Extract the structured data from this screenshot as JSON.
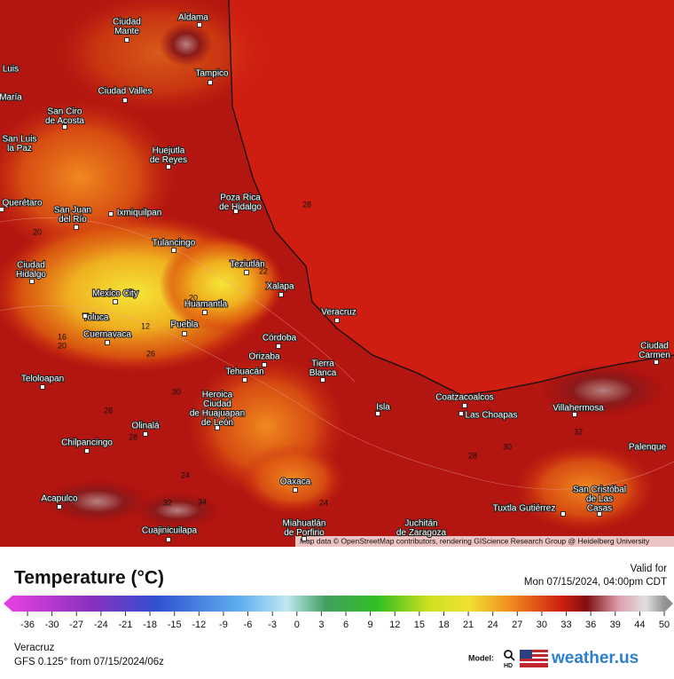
{
  "map": {
    "cities": [
      {
        "lines": [
          "Ciudad",
          "Mante"
        ]
      },
      {
        "lines": [
          "Aldama"
        ]
      },
      {
        "lines": [
          "Tampico"
        ]
      },
      {
        "lines": [
          "Luis"
        ]
      },
      {
        "lines": [
          "María"
        ]
      },
      {
        "lines": [
          "Ciudad Valles"
        ]
      },
      {
        "lines": [
          "San Ciro",
          "de Acosta"
        ]
      },
      {
        "lines": [
          "San Luis",
          "la Paz"
        ]
      },
      {
        "lines": [
          "Huejutla",
          "de Reyes"
        ]
      },
      {
        "lines": [
          "Poza Rica",
          "de Hidalgo"
        ]
      },
      {
        "lines": [
          "Querétaro"
        ]
      },
      {
        "lines": [
          "San Juan",
          "del Río"
        ]
      },
      {
        "lines": [
          "Ixmiquilpan"
        ]
      },
      {
        "lines": [
          "Tulancingo"
        ]
      },
      {
        "lines": [
          "Ciudad",
          "Hidalgo"
        ]
      },
      {
        "lines": [
          "Teziutlán"
        ]
      },
      {
        "lines": [
          "Xalapa"
        ]
      },
      {
        "lines": [
          "Mexico City"
        ]
      },
      {
        "lines": [
          "Huamantla"
        ]
      },
      {
        "lines": [
          "Veracruz"
        ]
      },
      {
        "lines": [
          "Toluca"
        ]
      },
      {
        "lines": [
          "Puebla"
        ]
      },
      {
        "lines": [
          "Cuernavaca"
        ]
      },
      {
        "lines": [
          "Córdoba"
        ]
      },
      {
        "lines": [
          "Orizaba"
        ]
      },
      {
        "lines": [
          "Tierra",
          "Blanca"
        ]
      },
      {
        "lines": [
          "Tehuacán"
        ]
      },
      {
        "lines": [
          "Teloloapan"
        ]
      },
      {
        "lines": [
          "Coatzacoalcos"
        ]
      },
      {
        "lines": [
          "Heroica",
          "Ciudad",
          "de Huajuapan",
          "de León"
        ]
      },
      {
        "lines": [
          "Isla"
        ]
      },
      {
        "lines": [
          "Villahermosa"
        ]
      },
      {
        "lines": [
          "Las Choapas"
        ]
      },
      {
        "lines": [
          "Olinalá"
        ]
      },
      {
        "lines": [
          "Chilpancingo"
        ]
      },
      {
        "lines": [
          "Palenque"
        ]
      },
      {
        "lines": [
          "Ciudad",
          "Carmen"
        ]
      },
      {
        "lines": [
          "Oaxaca"
        ]
      },
      {
        "lines": [
          "San Cristóbal",
          "de Las",
          "Casas"
        ]
      },
      {
        "lines": [
          "Acapulco"
        ]
      },
      {
        "lines": [
          "Tuxtla Gutiérrez"
        ]
      },
      {
        "lines": [
          "Miahuatlán",
          "de Porfirio"
        ]
      },
      {
        "lines": [
          "Juchitán",
          "de Zaragoza"
        ]
      },
      {
        "lines": [
          "Cuajinicuilapa"
        ]
      }
    ],
    "contour_labels": [
      28,
      22,
      20,
      20,
      12,
      16,
      20,
      26,
      30,
      28,
      28,
      24,
      24,
      28,
      30,
      32,
      32,
      34
    ],
    "attribution": "Map data © OpenStreetMap contributors, rendering GIScience Research Group @ Heidelberg University"
  },
  "legend": {
    "title": "Temperature (°C)",
    "ticks": [
      -36,
      -30,
      -27,
      -24,
      -21,
      -18,
      -15,
      -12,
      -9,
      -6,
      -3,
      0,
      3,
      6,
      9,
      12,
      15,
      18,
      21,
      24,
      27,
      30,
      33,
      36,
      39,
      44,
      50
    ]
  },
  "valid": {
    "label": "Valid for",
    "time": "Mon 07/15/2024, 04:00pm CDT"
  },
  "footer": {
    "location": "Veracruz",
    "model_run": "GFS 0.125° from  07/15/2024/06z",
    "model_label": "Model:",
    "hd": "HD",
    "brand": "weather.us"
  }
}
